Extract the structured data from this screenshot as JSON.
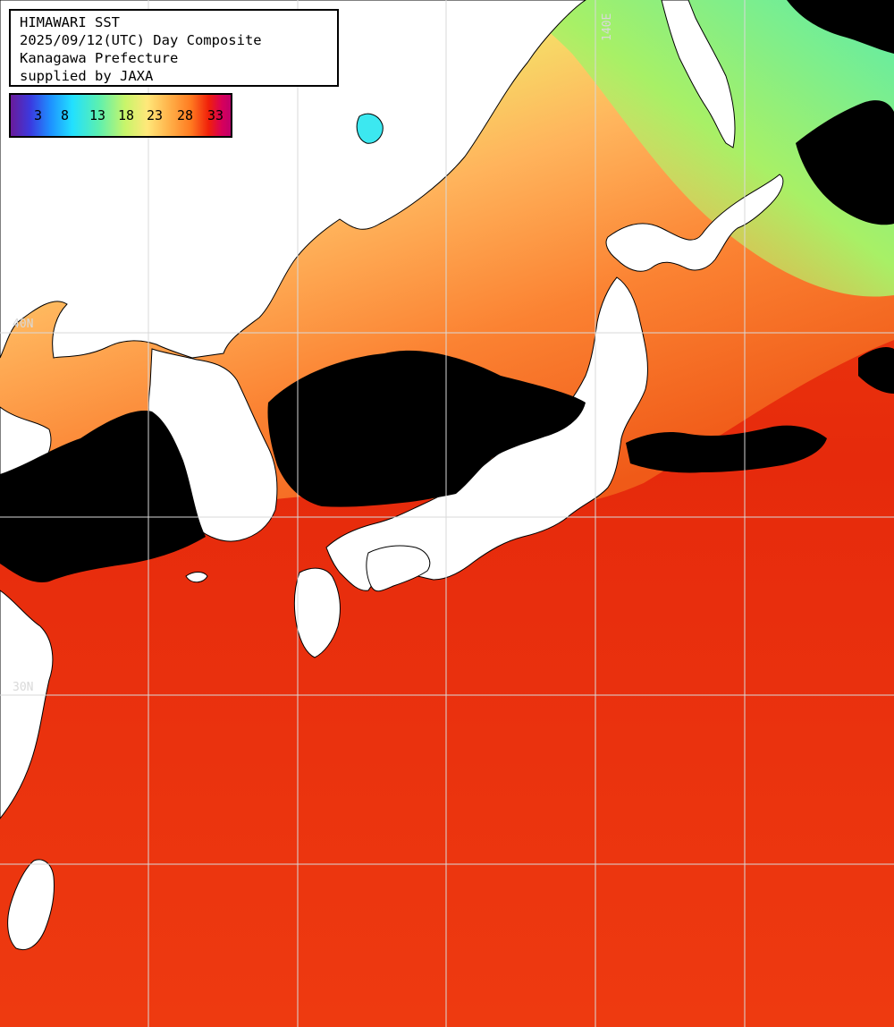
{
  "title": {
    "line1": "HIMAWARI SST",
    "line2": "2025/09/12(UTC) Day Composite",
    "line3": "Kanagawa Prefecture",
    "line4": "supplied by JAXA"
  },
  "legend": {
    "ticks": [
      "3",
      "8",
      "13",
      "18",
      "23",
      "28",
      "33"
    ],
    "colors": {
      "min": "#6a1b9a",
      "cold": "#1e90ff",
      "cool": "#5cf0b0",
      "mild": "#ffe87a",
      "warm": "#ff7a20",
      "hot": "#f0200a",
      "max": "#c0006a"
    }
  },
  "graticule": {
    "lat_label": "40N",
    "lat_label_2": "30N",
    "lon_label": "140E"
  },
  "colors": {
    "land": "#ffffff",
    "cloud": "#000000",
    "sea_warm": "#e8230c",
    "sea_mild": "#fa7a2a",
    "sea_cool": "#b4f25a",
    "grid": "#d9d9d9"
  }
}
